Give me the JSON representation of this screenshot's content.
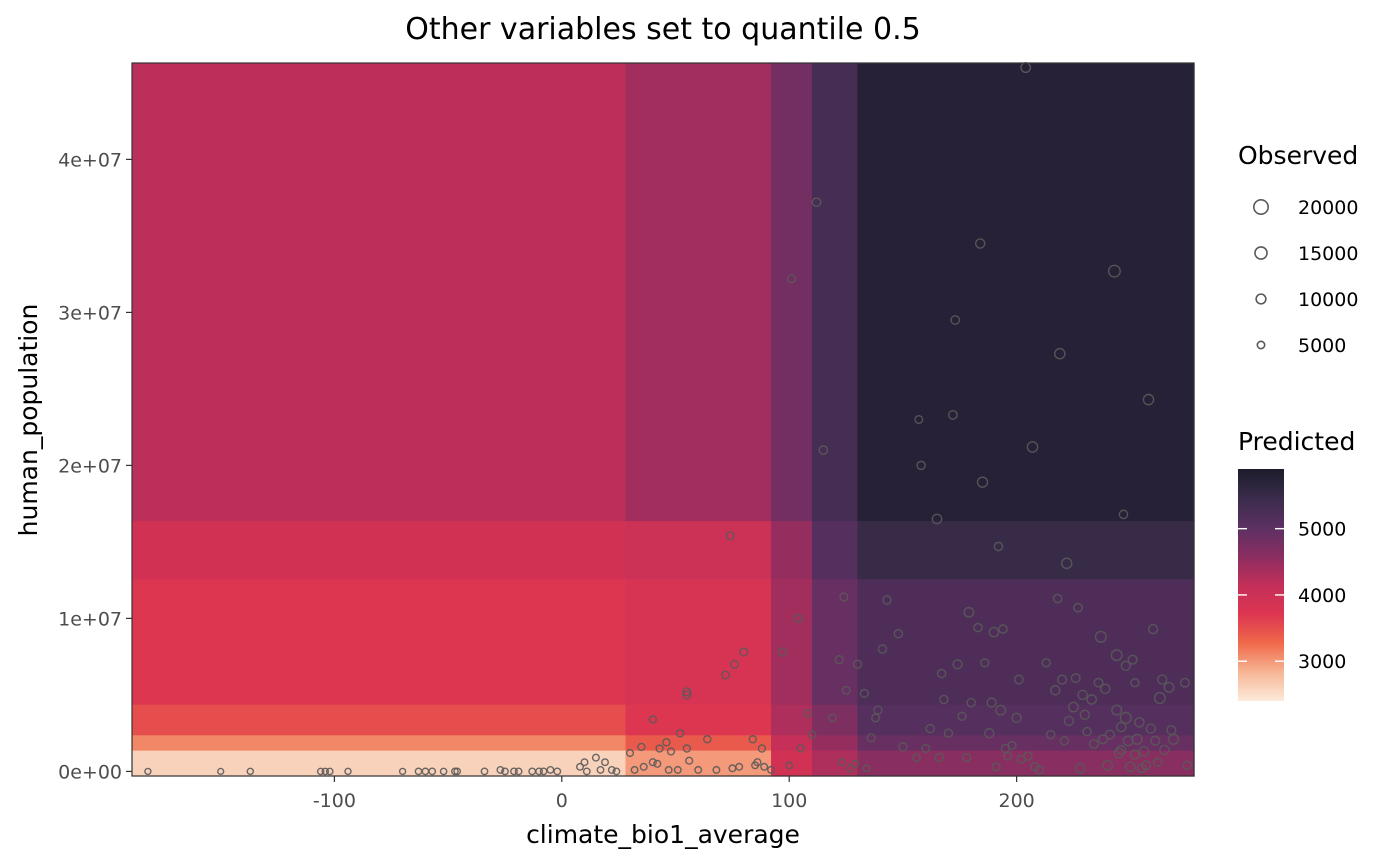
{
  "chart_data": {
    "type": "heatmap",
    "title": "Other variables set to quantile 0.5",
    "xlabel": "climate_bio1_average",
    "ylabel": "human_population",
    "xlim": [
      -189,
      278
    ],
    "ylim": [
      -300000,
      46300000
    ],
    "x_ticks": [
      {
        "value": -100,
        "label": "-100"
      },
      {
        "value": 0,
        "label": "0"
      },
      {
        "value": 100,
        "label": "100"
      },
      {
        "value": 200,
        "label": "200"
      }
    ],
    "y_ticks": [
      {
        "value": 0,
        "label": "0e+00"
      },
      {
        "value": 10000000,
        "label": "1e+07"
      },
      {
        "value": 20000000,
        "label": "2e+07"
      },
      {
        "value": 30000000,
        "label": "3e+07"
      },
      {
        "value": 40000000,
        "label": "4e+07"
      }
    ],
    "heat_x_breaks": [
      -189,
      28,
      92,
      110,
      130,
      278
    ],
    "heat_y_breaks": [
      -300000,
      1400000,
      2400000,
      4400000,
      12600000,
      16400000,
      46300000
    ],
    "heat_values": [
      [
        2600,
        3000,
        3900,
        4300,
        4600
      ],
      [
        3100,
        3400,
        4100,
        4500,
        4900
      ],
      [
        3500,
        3700,
        4300,
        4700,
        5100
      ],
      [
        3700,
        3800,
        4400,
        4900,
        5200
      ],
      [
        3900,
        4000,
        4500,
        5100,
        5500
      ],
      [
        4200,
        4400,
        4800,
        5300,
        5750
      ]
    ],
    "fill_scale": {
      "domain": [
        2400,
        5900
      ],
      "colors": [
        "#fcebdc",
        "#f6b594",
        "#f0694a",
        "#dc3551",
        "#c32f59",
        "#8a2e61",
        "#5b3062",
        "#3a2c4b",
        "#1c1c2b"
      ]
    },
    "legend_observed": {
      "title": "Observed",
      "entries": [
        {
          "value": 20000,
          "label": "20000"
        },
        {
          "value": 15000,
          "label": "15000"
        },
        {
          "value": 10000,
          "label": "10000"
        },
        {
          "value": 5000,
          "label": "5000"
        }
      ]
    },
    "legend_predicted": {
      "title": "Predicted",
      "ticks": [
        {
          "value": 5000,
          "label": "5000"
        },
        {
          "value": 4000,
          "label": "4000"
        },
        {
          "value": 3000,
          "label": "3000"
        }
      ]
    },
    "points": [
      [
        -182,
        0,
        2000
      ],
      [
        -150,
        0,
        1800
      ],
      [
        -137,
        0,
        2200
      ],
      [
        -106,
        0,
        2400
      ],
      [
        -104,
        0,
        2400
      ],
      [
        -102,
        0,
        2500
      ],
      [
        -94,
        0,
        2200
      ],
      [
        -70,
        0,
        2000
      ],
      [
        -63,
        0,
        2600
      ],
      [
        -60,
        0,
        2600
      ],
      [
        -57,
        0,
        2800
      ],
      [
        -52,
        0,
        2500
      ],
      [
        -47,
        0,
        2700
      ],
      [
        -46,
        0,
        2700
      ],
      [
        -34,
        0,
        2800
      ],
      [
        -27,
        100000,
        3000
      ],
      [
        -25,
        0,
        2900
      ],
      [
        -21,
        0,
        2800
      ],
      [
        -19,
        0,
        3000
      ],
      [
        -13,
        0,
        2900
      ],
      [
        -10,
        0,
        3000
      ],
      [
        -8,
        0,
        2900
      ],
      [
        -5,
        100000,
        3000
      ],
      [
        -2,
        0,
        3000
      ],
      [
        8,
        300000,
        3200
      ],
      [
        10,
        600000,
        3300
      ],
      [
        11,
        0,
        3000
      ],
      [
        15,
        900000,
        3400
      ],
      [
        17,
        100000,
        3000
      ],
      [
        19,
        600000,
        3200
      ],
      [
        22,
        100000,
        3100
      ],
      [
        24,
        0,
        3000
      ],
      [
        30,
        1200000,
        3600
      ],
      [
        32,
        100000,
        3200
      ],
      [
        35,
        1600000,
        4000
      ],
      [
        36,
        300000,
        3400
      ],
      [
        40,
        3400000,
        4200
      ],
      [
        40,
        600000,
        3600
      ],
      [
        42,
        500000,
        3500
      ],
      [
        43,
        1500000,
        4000
      ],
      [
        46,
        1900000,
        4300
      ],
      [
        47,
        100000,
        3200
      ],
      [
        48,
        1300000,
        3900
      ],
      [
        51,
        100000,
        3200
      ],
      [
        52,
        2500000,
        4600
      ],
      [
        55,
        5000000,
        5600
      ],
      [
        55,
        5200000,
        5600
      ],
      [
        55,
        1500000,
        4100
      ],
      [
        56,
        700000,
        3700
      ],
      [
        60,
        100000,
        3200
      ],
      [
        64,
        2100000,
        4300
      ],
      [
        68,
        100000,
        3200
      ],
      [
        72,
        6300000,
        5400
      ],
      [
        74,
        15400000,
        5600
      ],
      [
        75,
        200000,
        3300
      ],
      [
        76,
        7000000,
        5600
      ],
      [
        78,
        300000,
        3300
      ],
      [
        80,
        7800000,
        5600
      ],
      [
        84,
        2100000,
        4300
      ],
      [
        85,
        400000,
        3300
      ],
      [
        86,
        600000,
        3600
      ],
      [
        88,
        1500000,
        4100
      ],
      [
        89,
        300000,
        3300
      ],
      [
        92,
        100000,
        3200
      ],
      [
        97,
        7800000,
        5700
      ],
      [
        100,
        400000,
        3300
      ],
      [
        101,
        32200000,
        5600
      ],
      [
        104,
        10000000,
        5600
      ],
      [
        105,
        1500000,
        4000
      ],
      [
        108,
        3800000,
        4900
      ],
      [
        110,
        2400000,
        4600
      ],
      [
        112,
        37200000,
        7200
      ],
      [
        115,
        21000000,
        7000
      ],
      [
        119,
        3500000,
        4900
      ],
      [
        122,
        7300000,
        6400
      ],
      [
        123,
        600000,
        3600
      ],
      [
        124,
        11400000,
        5800
      ],
      [
        125,
        5300000,
        5400
      ],
      [
        127,
        200000,
        3200
      ],
      [
        129,
        500000,
        3500
      ],
      [
        130,
        7000000,
        6300
      ],
      [
        133,
        5100000,
        5800
      ],
      [
        134,
        200000,
        3200
      ],
      [
        136,
        2200000,
        5800
      ],
      [
        138,
        3500000,
        5400
      ],
      [
        139,
        4000000,
        6200
      ],
      [
        141,
        8000000,
        6300
      ],
      [
        143,
        11200000,
        6400
      ],
      [
        148,
        9000000,
        6600
      ],
      [
        150,
        1600000,
        6400
      ],
      [
        156,
        900000,
        5000
      ],
      [
        157,
        23000000,
        5600
      ],
      [
        158,
        20000000,
        6400
      ],
      [
        160,
        1500000,
        5600
      ],
      [
        162,
        2800000,
        6400
      ],
      [
        165,
        16500000,
        9200
      ],
      [
        166,
        900000,
        6300
      ],
      [
        167,
        6400000,
        6600
      ],
      [
        168,
        4700000,
        6600
      ],
      [
        170,
        2500000,
        6400
      ],
      [
        172,
        23300000,
        7300
      ],
      [
        173,
        29500000,
        7000
      ],
      [
        174,
        7000000,
        8100
      ],
      [
        176,
        3600000,
        6000
      ],
      [
        178,
        900000,
        5800
      ],
      [
        179,
        10400000,
        9200
      ],
      [
        180,
        4500000,
        6600
      ],
      [
        183,
        9400000,
        6700
      ],
      [
        184,
        34500000,
        8600
      ],
      [
        185,
        18900000,
        10600
      ],
      [
        186,
        7100000,
        6200
      ],
      [
        188,
        2500000,
        8500
      ],
      [
        189,
        4500000,
        8300
      ],
      [
        190,
        9100000,
        8800
      ],
      [
        191,
        300000,
        5300
      ],
      [
        192,
        14700000,
        6800
      ],
      [
        193,
        4000000,
        9600
      ],
      [
        194,
        9300000,
        6700
      ],
      [
        195,
        1500000,
        6200
      ],
      [
        196,
        1000000,
        5500
      ],
      [
        198,
        1700000,
        5900
      ],
      [
        200,
        3500000,
        8300
      ],
      [
        201,
        6000000,
        7300
      ],
      [
        202,
        800000,
        5900
      ],
      [
        204,
        46000000,
        9500
      ],
      [
        205,
        1000000,
        6100
      ],
      [
        207,
        21200000,
        11200
      ],
      [
        208,
        300000,
        6000
      ],
      [
        210,
        100000,
        6400
      ],
      [
        213,
        7100000,
        6400
      ],
      [
        215,
        2400000,
        6400
      ],
      [
        217,
        5300000,
        8600
      ],
      [
        218,
        11300000,
        6700
      ],
      [
        219,
        27300000,
        11000
      ],
      [
        220,
        6000000,
        8100
      ],
      [
        221,
        2000000,
        6200
      ],
      [
        222,
        13600000,
        10900
      ],
      [
        223,
        3300000,
        8300
      ],
      [
        225,
        4200000,
        9500
      ],
      [
        226,
        6100000,
        7600
      ],
      [
        227,
        10700000,
        7200
      ],
      [
        228,
        200000,
        9400
      ],
      [
        229,
        5000000,
        8600
      ],
      [
        230,
        3700000,
        8600
      ],
      [
        231,
        2600000,
        6700
      ],
      [
        233,
        4700000,
        9000
      ],
      [
        234,
        1800000,
        7400
      ],
      [
        236,
        5800000,
        7200
      ],
      [
        237,
        8800000,
        12000
      ],
      [
        238,
        2100000,
        8000
      ],
      [
        239,
        5400000,
        8900
      ],
      [
        240,
        400000,
        9700
      ],
      [
        241,
        2400000,
        7900
      ],
      [
        243,
        32700000,
        14000
      ],
      [
        244,
        4000000,
        10000
      ],
      [
        244,
        7600000,
        12000
      ],
      [
        245,
        1200000,
        9300
      ],
      [
        246,
        2900000,
        8900
      ],
      [
        246,
        1400000,
        7800
      ],
      [
        247,
        16800000,
        6900
      ],
      [
        248,
        6900000,
        8400
      ],
      [
        248,
        3500000,
        12300
      ],
      [
        249,
        2000000,
        9500
      ],
      [
        250,
        300000,
        9400
      ],
      [
        251,
        7300000,
        7900
      ],
      [
        252,
        1100000,
        7900
      ],
      [
        252,
        5800000,
        6100
      ],
      [
        253,
        2100000,
        9700
      ],
      [
        254,
        3200000,
        8900
      ],
      [
        255,
        200000,
        7300
      ],
      [
        256,
        1300000,
        9300
      ],
      [
        257,
        400000,
        7600
      ],
      [
        258,
        24300000,
        11000
      ],
      [
        259,
        2800000,
        8600
      ],
      [
        260,
        9300000,
        8400
      ],
      [
        261,
        2000000,
        8100
      ],
      [
        262,
        600000,
        6500
      ],
      [
        263,
        4800000,
        12000
      ],
      [
        264,
        6000000,
        8600
      ],
      [
        265,
        1400000,
        8600
      ],
      [
        267,
        5500000,
        9400
      ],
      [
        268,
        2700000,
        8000
      ],
      [
        269,
        2100000,
        10200
      ],
      [
        274,
        5800000,
        7500
      ],
      [
        275,
        400000,
        6000
      ]
    ]
  }
}
